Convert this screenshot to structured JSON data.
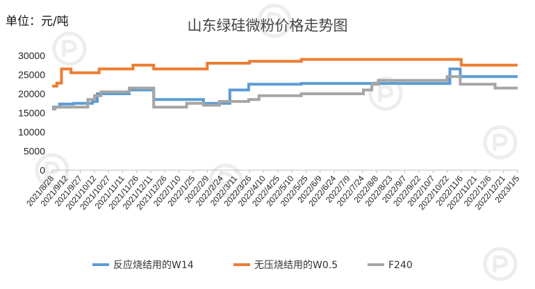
{
  "chart_data": {
    "type": "line",
    "title": "山东绿硅微粉价格走势图",
    "unit_label": "单位：元/吨",
    "xlabel": "",
    "ylabel": "",
    "ylim": [
      0,
      30000
    ],
    "y_ticks": [
      0,
      5000,
      10000,
      15000,
      20000,
      25000,
      30000
    ],
    "grid": false,
    "legend_position": "bottom",
    "step": true,
    "x_start": "2021/8/28",
    "x_end": "2023/1/5",
    "x_tick_labels": [
      "2021/8/28",
      "2021/9/12",
      "2021/9/27",
      "2021/10/12",
      "2021/10/27",
      "2021/11/11",
      "2021/11/26",
      "2021/12/11",
      "2021/12/26",
      "2022/1/10",
      "2022/1/25",
      "2022/2/9",
      "2022/2/24",
      "2022/3/11",
      "2022/3/26",
      "2022/4/10",
      "2022/4/25",
      "2022/5/10",
      "2022/5/25",
      "2022/6/9",
      "2022/6/24",
      "2022/7/9",
      "2022/7/24",
      "2022/8/8",
      "2022/8/23",
      "2022/9/7",
      "2022/9/22",
      "2022/10/7",
      "2022/10/22",
      "2022/11/6",
      "2022/11/21",
      "2022/12/6",
      "2022/12/21",
      "2023/1/5"
    ],
    "series": [
      {
        "name": "反应烧结用的W14",
        "color": "#5B9BD5",
        "points": [
          [
            "2021/8/28",
            16500
          ],
          [
            "2021/9/5",
            17300
          ],
          [
            "2021/9/20",
            17500
          ],
          [
            "2021/10/10",
            18000
          ],
          [
            "2021/10/15",
            20000
          ],
          [
            "2021/11/18",
            21000
          ],
          [
            "2021/12/14",
            18500
          ],
          [
            "2022/2/5",
            17500
          ],
          [
            "2022/3/5",
            21000
          ],
          [
            "2022/3/25",
            22500
          ],
          [
            "2022/5/20",
            22700
          ],
          [
            "2022/10/25",
            26500
          ],
          [
            "2022/11/5",
            24500
          ],
          [
            "2023/1/5",
            24500
          ]
        ]
      },
      {
        "name": "无压烧结用的W0.5",
        "color": "#ED7D31",
        "points": [
          [
            "2021/8/28",
            22000
          ],
          [
            "2021/9/2",
            22800
          ],
          [
            "2021/9/7",
            26500
          ],
          [
            "2021/9/17",
            25500
          ],
          [
            "2021/10/17",
            26500
          ],
          [
            "2021/11/22",
            27500
          ],
          [
            "2021/12/14",
            26500
          ],
          [
            "2022/2/9",
            28000
          ],
          [
            "2022/3/26",
            28500
          ],
          [
            "2022/5/20",
            29000
          ],
          [
            "2022/11/6",
            27500
          ],
          [
            "2023/1/5",
            27500
          ]
        ]
      },
      {
        "name": "F240",
        "color": "#A5A5A5",
        "points": [
          [
            "2021/8/28",
            16000
          ],
          [
            "2021/8/31",
            16500
          ],
          [
            "2021/10/5",
            18500
          ],
          [
            "2021/10/12",
            19500
          ],
          [
            "2021/10/19",
            20500
          ],
          [
            "2021/11/18",
            21500
          ],
          [
            "2021/12/14",
            16500
          ],
          [
            "2022/1/18",
            17500
          ],
          [
            "2022/2/5",
            17000
          ],
          [
            "2022/2/22",
            18000
          ],
          [
            "2022/3/25",
            18500
          ],
          [
            "2022/4/5",
            19500
          ],
          [
            "2022/5/20",
            20000
          ],
          [
            "2022/7/25",
            21000
          ],
          [
            "2022/8/3",
            22500
          ],
          [
            "2022/8/10",
            23500
          ],
          [
            "2022/10/22",
            24500
          ],
          [
            "2022/11/5",
            22500
          ],
          [
            "2022/12/12",
            21500
          ],
          [
            "2023/1/5",
            21500
          ]
        ]
      }
    ]
  }
}
